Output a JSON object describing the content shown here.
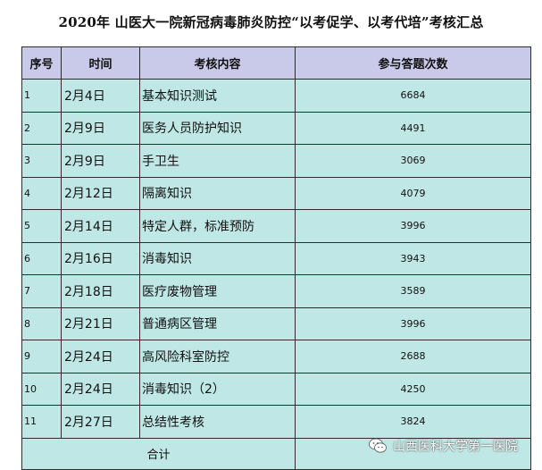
{
  "title": "2020年 山医大一院新冠病毒肺炎防控“以考促学、以考代培”考核汇总",
  "table": {
    "headers": {
      "no": "序号",
      "date": "时间",
      "topic": "考核内容",
      "count": "参与答题次数"
    },
    "rows": [
      {
        "no": "1",
        "date": "2月4日",
        "topic": "基本知识测试",
        "count": "6684"
      },
      {
        "no": "2",
        "date": "2月9日",
        "topic": "医务人员防护知识",
        "count": "4491"
      },
      {
        "no": "3",
        "date": "2月9日",
        "topic": "手卫生",
        "count": "3069"
      },
      {
        "no": "4",
        "date": "2月12日",
        "topic": "隔离知识",
        "count": "4079"
      },
      {
        "no": "5",
        "date": "2月14日",
        "topic": "特定人群，标准预防",
        "count": "3996"
      },
      {
        "no": "6",
        "date": "2月16日",
        "topic": "消毒知识",
        "count": "3943"
      },
      {
        "no": "7",
        "date": "2月18日",
        "topic": "医疗废物管理",
        "count": "3589"
      },
      {
        "no": "8",
        "date": "2月21日",
        "topic": "普通病区管理",
        "count": "3996"
      },
      {
        "no": "9",
        "date": "2月24日",
        "topic": "高风险科室防控",
        "count": "2688"
      },
      {
        "no": "10",
        "date": "2月24日",
        "topic": "消毒知识（2）",
        "count": "4250"
      },
      {
        "no": "11",
        "date": "2月27日",
        "topic": "总结性考核",
        "count": "3824"
      }
    ],
    "total_label": "合计"
  },
  "watermark": {
    "text": "山西医科大学第一医院",
    "icon": "wechat-icon"
  }
}
